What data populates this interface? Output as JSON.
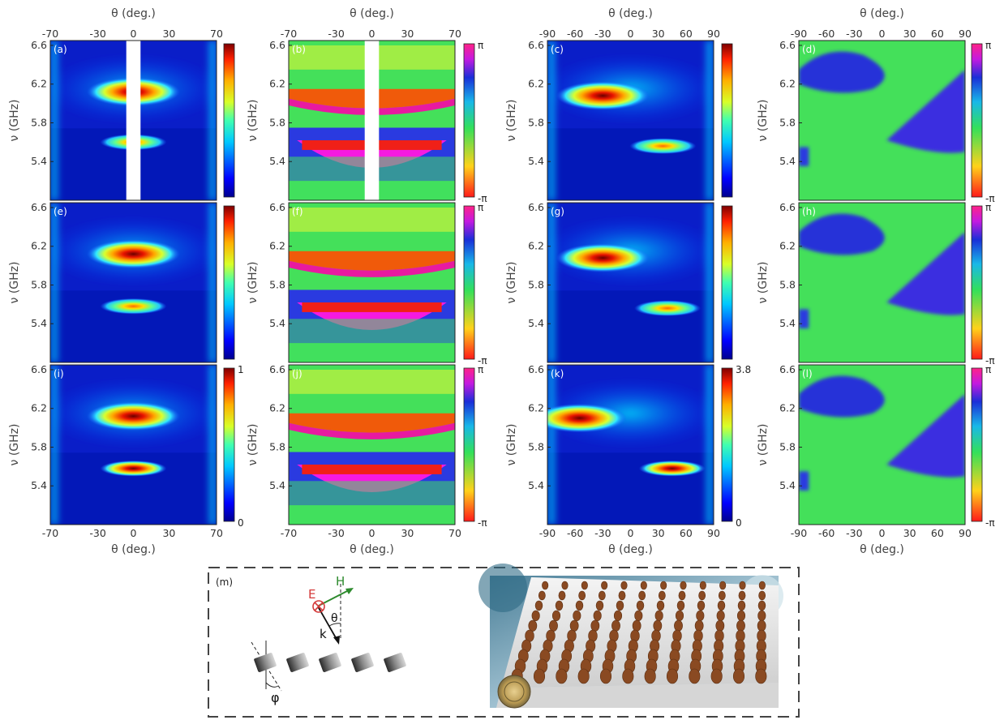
{
  "chart_data": [
    {
      "panel": "a",
      "label": "(a)",
      "type": "heatmap",
      "quantity": "amplitude",
      "xlim": [
        -70,
        70
      ],
      "ylim": [
        5.0,
        6.65
      ],
      "xticks": [
        "-70",
        "-30",
        "0",
        "30",
        "70"
      ],
      "yticks": [
        "5.4",
        "5.8",
        "6.2",
        "6.6"
      ],
      "masked_x": [
        -6,
        6
      ],
      "features": [
        {
          "x": 0,
          "y": 6.12,
          "level": 0.95
        },
        {
          "x": 0,
          "y": 5.6,
          "level": 0.55
        }
      ],
      "colorbar": "jet",
      "colorbar_ticks": []
    },
    {
      "panel": "b",
      "label": "(b)",
      "type": "heatmap",
      "quantity": "phase",
      "xlim": [
        -70,
        70
      ],
      "ylim": [
        5.0,
        6.65
      ],
      "xticks": [
        "-70",
        "-30",
        "0",
        "30",
        "70"
      ],
      "yticks": [
        "5.4",
        "5.8",
        "6.2",
        "6.6"
      ],
      "masked_x": [
        -6,
        6
      ],
      "colorbar": "phase",
      "colorbar_ticks": [
        "π",
        "-π"
      ]
    },
    {
      "panel": "c",
      "label": "(c)",
      "type": "heatmap",
      "quantity": "amplitude",
      "xlim": [
        -90,
        90
      ],
      "ylim": [
        5.0,
        6.65
      ],
      "xticks": [
        "-90",
        "-60",
        "-30",
        "0",
        "30",
        "60",
        "90"
      ],
      "yticks": [
        "5.4",
        "5.8",
        "6.2",
        "6.6"
      ],
      "features": [
        {
          "x": -30,
          "y": 6.08,
          "level": 0.95
        },
        {
          "x": 35,
          "y": 5.56,
          "level": 0.7
        }
      ],
      "colorbar": "jet",
      "colorbar_ticks": []
    },
    {
      "panel": "d",
      "label": "(d)",
      "type": "heatmap",
      "quantity": "phase",
      "xlim": [
        -90,
        90
      ],
      "ylim": [
        5.0,
        6.65
      ],
      "xticks": [
        "-90",
        "-60",
        "-30",
        "0",
        "30",
        "60",
        "90"
      ],
      "yticks": [
        "5.4",
        "5.8",
        "6.2",
        "6.6"
      ],
      "colorbar": "phase",
      "colorbar_ticks": [
        "π",
        "-π"
      ]
    },
    {
      "panel": "e",
      "label": "(e)",
      "type": "heatmap",
      "quantity": "amplitude",
      "xlim": [
        -70,
        70
      ],
      "ylim": [
        5.0,
        6.65
      ],
      "yticks": [
        "5.4",
        "5.8",
        "6.2",
        "6.6"
      ],
      "features": [
        {
          "x": 0,
          "y": 6.12,
          "level": 0.95
        },
        {
          "x": 0,
          "y": 5.58,
          "level": 0.55
        }
      ],
      "colorbar": "jet",
      "colorbar_ticks": []
    },
    {
      "panel": "f",
      "label": "(f)",
      "type": "heatmap",
      "quantity": "phase",
      "xlim": [
        -70,
        70
      ],
      "ylim": [
        5.0,
        6.65
      ],
      "yticks": [
        "5.4",
        "5.8",
        "6.2",
        "6.6"
      ],
      "colorbar": "phase",
      "colorbar_ticks": [
        "π",
        "-π"
      ]
    },
    {
      "panel": "g",
      "label": "(g)",
      "type": "heatmap",
      "quantity": "amplitude",
      "xlim": [
        -90,
        90
      ],
      "ylim": [
        5.0,
        6.65
      ],
      "yticks": [
        "5.4",
        "5.8",
        "6.2",
        "6.6"
      ],
      "features": [
        {
          "x": -30,
          "y": 6.08,
          "level": 0.95
        },
        {
          "x": 40,
          "y": 5.56,
          "level": 0.75
        }
      ],
      "colorbar": "jet",
      "colorbar_ticks": []
    },
    {
      "panel": "h",
      "label": "(h)",
      "type": "heatmap",
      "quantity": "phase",
      "xlim": [
        -90,
        90
      ],
      "ylim": [
        5.0,
        6.65
      ],
      "yticks": [
        "5.4",
        "5.8",
        "6.2",
        "6.6"
      ],
      "colorbar": "phase",
      "colorbar_ticks": [
        "π",
        "-π"
      ]
    },
    {
      "panel": "i",
      "label": "(i)",
      "type": "heatmap",
      "quantity": "amplitude",
      "xlim": [
        -70,
        70
      ],
      "ylim": [
        5.0,
        6.65
      ],
      "xticks": [
        "-70",
        "-30",
        "0",
        "30",
        "70"
      ],
      "yticks": [
        "5.4",
        "5.8",
        "6.2",
        "6.6"
      ],
      "features": [
        {
          "x": 0,
          "y": 6.12,
          "level": 0.95
        },
        {
          "x": 0,
          "y": 5.58,
          "level": 0.85
        }
      ],
      "colorbar": "jet",
      "colorbar_ticks": [
        "1",
        "0"
      ]
    },
    {
      "panel": "j",
      "label": "(j)",
      "type": "heatmap",
      "quantity": "phase",
      "xlim": [
        -70,
        70
      ],
      "ylim": [
        5.0,
        6.65
      ],
      "xticks": [
        "-70",
        "-30",
        "0",
        "30",
        "70"
      ],
      "yticks": [
        "5.4",
        "5.8",
        "6.2",
        "6.6"
      ],
      "colorbar": "phase",
      "colorbar_ticks": [
        "π",
        "-π"
      ]
    },
    {
      "panel": "k",
      "label": "(k)",
      "type": "heatmap",
      "quantity": "amplitude",
      "xlim": [
        -90,
        90
      ],
      "ylim": [
        5.0,
        6.65
      ],
      "xticks": [
        "-90",
        "-60",
        "-30",
        "0",
        "30",
        "60",
        "90"
      ],
      "yticks": [
        "5.4",
        "5.8",
        "6.2",
        "6.6"
      ],
      "features": [
        {
          "x": -55,
          "y": 6.1,
          "level": 0.95
        },
        {
          "x": 45,
          "y": 5.58,
          "level": 0.95
        }
      ],
      "colorbar": "jet",
      "colorbar_ticks": [
        "3.8",
        "0"
      ]
    },
    {
      "panel": "l",
      "label": "(l)",
      "type": "heatmap",
      "quantity": "phase",
      "xlim": [
        -90,
        90
      ],
      "ylim": [
        5.0,
        6.65
      ],
      "xticks": [
        "-90",
        "-60",
        "-30",
        "0",
        "30",
        "60",
        "90"
      ],
      "yticks": [
        "5.4",
        "5.8",
        "6.2",
        "6.6"
      ],
      "colorbar": "phase",
      "colorbar_ticks": [
        "π",
        "-π"
      ]
    }
  ],
  "axis_labels": {
    "x": "θ (deg.)",
    "y": "ν (GHz)"
  },
  "schematic": {
    "label": "(m)",
    "e_label": "E",
    "h_label": "H",
    "k_label": "k",
    "theta_label": "θ",
    "phi_label": "φ",
    "e_color": "#d43a3a",
    "h_color": "#2e8b2e"
  },
  "photo": {
    "description_visible": false
  }
}
